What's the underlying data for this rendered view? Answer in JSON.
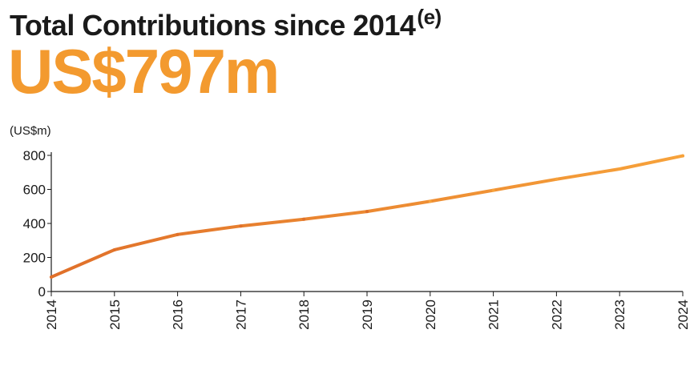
{
  "header": {
    "title": "Total Contributions since 2014",
    "title_superscript": "(e)",
    "headline_value": "US$797m"
  },
  "chart_data": {
    "type": "line",
    "unit_label": "(US$m)",
    "x": [
      "2014",
      "2015",
      "2016",
      "2017",
      "2018",
      "2019",
      "2020",
      "2021",
      "2022",
      "2023",
      "2024"
    ],
    "series": [
      {
        "values": [
          85,
          245,
          335,
          385,
          425,
          470,
          530,
          595,
          660,
          720,
          797
        ]
      }
    ],
    "ylim": [
      0,
      800
    ],
    "yticks": [
      0,
      200,
      400,
      600,
      800
    ],
    "grid": false,
    "line_color_start": "#e0702a",
    "line_color_end": "#f7a23a"
  }
}
